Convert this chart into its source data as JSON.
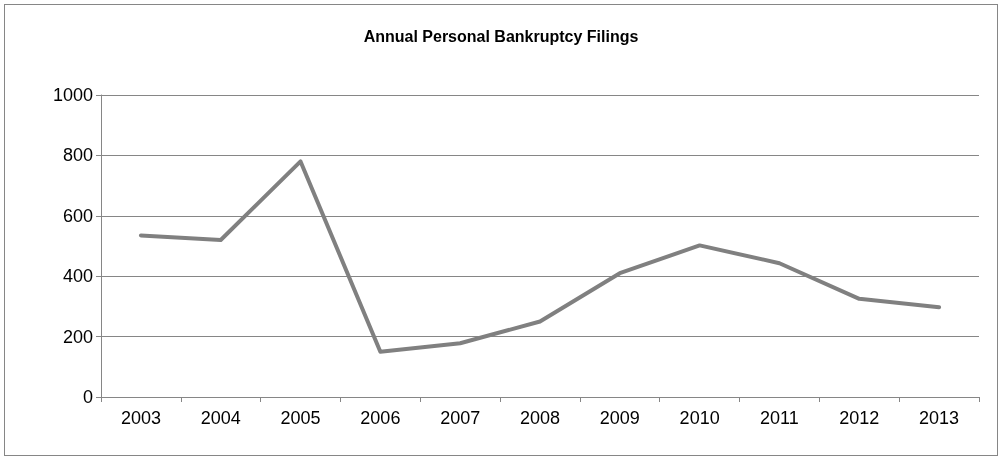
{
  "chart_data": {
    "type": "line",
    "title": "Annual Personal Bankruptcy Filings",
    "categories": [
      "2003",
      "2004",
      "2005",
      "2006",
      "2007",
      "2008",
      "2009",
      "2010",
      "2011",
      "2012",
      "2013"
    ],
    "series": [
      {
        "color": "#808080",
        "values": [
          535,
          520,
          780,
          150,
          178,
          250,
          410,
          502,
          443,
          325,
          297
        ]
      }
    ],
    "ylim": [
      0,
      1000
    ],
    "yticks": [
      0,
      200,
      400,
      600,
      800,
      1000
    ],
    "grid": "y",
    "marker": "none",
    "line_style": "solid"
  }
}
